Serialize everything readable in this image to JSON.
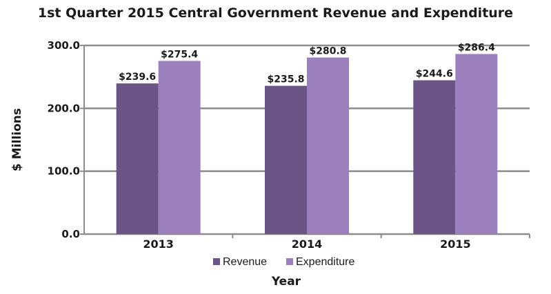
{
  "chart_data": {
    "type": "bar",
    "title": "1st Quarter 2015 Central Government Revenue and Expenditure",
    "xlabel": "Year",
    "ylabel": "$ Millions",
    "categories": [
      "2013",
      "2014",
      "2015"
    ],
    "series": [
      {
        "name": "Revenue",
        "color": "#6a5586",
        "values": [
          239.6,
          235.8,
          244.6
        ],
        "data_labels": [
          "$239.6",
          "$235.8",
          "$244.6"
        ]
      },
      {
        "name": "Expenditure",
        "color": "#9b80bd",
        "values": [
          275.4,
          280.8,
          286.4
        ],
        "data_labels": [
          "$275.4",
          "$280.8",
          "$286.4"
        ]
      }
    ],
    "ylim": [
      0,
      300
    ],
    "yticks": [
      0,
      100,
      200,
      300
    ],
    "ytick_labels": [
      "0.0",
      "100.0",
      "200.0",
      "300.0"
    ],
    "grid": true,
    "legend_position": "bottom"
  }
}
